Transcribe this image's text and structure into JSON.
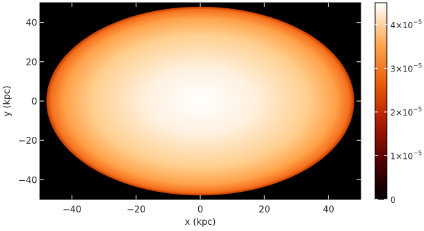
{
  "chart_data": {
    "type": "heatmap",
    "title": "",
    "xlabel": "x (kpc)",
    "ylabel": "y (kpc)",
    "xlim": [
      -50,
      50
    ],
    "ylim": [
      -50,
      50
    ],
    "x_ticks": [
      -40,
      -20,
      0,
      20,
      40
    ],
    "y_ticks": [
      -40,
      -20,
      0,
      20,
      40
    ],
    "grid": false,
    "background_value": 0,
    "field": {
      "shape": "ellipse",
      "center": [
        0,
        0
      ],
      "semi_axis_x": 48,
      "semi_axis_y": 48,
      "peak_value": 4.5e-05,
      "edge_value": 2.6e-05
    },
    "colorbar": {
      "range": [
        0,
        4.5e-05
      ],
      "ticks": [
        {
          "value": 0,
          "mantissa": "0",
          "exponent": ""
        },
        {
          "value": 1e-05,
          "mantissa": "1×10",
          "exponent": "−5"
        },
        {
          "value": 2e-05,
          "mantissa": "2×10",
          "exponent": "−5"
        },
        {
          "value": 3e-05,
          "mantissa": "3×10",
          "exponent": "−5"
        },
        {
          "value": 4e-05,
          "mantissa": "4×10",
          "exponent": "−5"
        }
      ],
      "colormap": [
        "#000000",
        "#7a0000",
        "#c43200",
        "#ff7b14",
        "#ffbe6a",
        "#ffffff"
      ]
    }
  }
}
